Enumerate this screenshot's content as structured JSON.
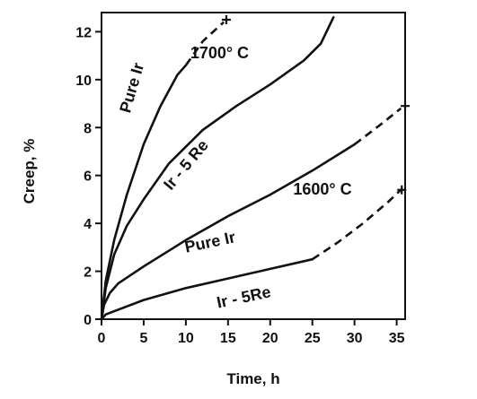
{
  "chart_data": {
    "type": "line",
    "xlabel": "Time, h",
    "ylabel": "Creep, %",
    "xlim": [
      0,
      36
    ],
    "ylim": [
      0,
      12.8
    ],
    "xticks": [
      0,
      5,
      10,
      15,
      20,
      25,
      30,
      35
    ],
    "yticks": [
      0,
      2,
      4,
      6,
      8,
      10,
      12
    ],
    "grid": false,
    "legend": "none",
    "series": [
      {
        "name": "Pure Ir",
        "group": "1700° C",
        "solid": [
          [
            0,
            0
          ],
          [
            0.5,
            1.6
          ],
          [
            1.5,
            3.3
          ],
          [
            3,
            5.2
          ],
          [
            5,
            7.3
          ],
          [
            7,
            8.9
          ],
          [
            9,
            10.2
          ],
          [
            10,
            10.6
          ]
        ],
        "dashed": [
          [
            10,
            10.6
          ],
          [
            12,
            11.6
          ],
          [
            14.5,
            12.4
          ]
        ],
        "rupture": [
          14.8,
          12.5
        ]
      },
      {
        "name": "Ir - 5 Re",
        "group": "1700° C",
        "solid": [
          [
            0,
            0
          ],
          [
            0.5,
            1.3
          ],
          [
            1.5,
            2.7
          ],
          [
            3,
            3.9
          ],
          [
            5,
            5.0
          ],
          [
            8,
            6.5
          ],
          [
            12,
            7.9
          ],
          [
            16,
            8.9
          ],
          [
            20,
            9.8
          ],
          [
            24,
            10.8
          ],
          [
            26,
            11.5
          ],
          [
            27.5,
            12.6
          ]
        ],
        "dashed": [],
        "rupture": null
      },
      {
        "name": "Pure Ir",
        "group": "1600° C",
        "solid": [
          [
            0,
            0
          ],
          [
            0.3,
            0.6
          ],
          [
            1,
            1.1
          ],
          [
            2,
            1.5
          ],
          [
            5,
            2.2
          ],
          [
            10,
            3.3
          ],
          [
            15,
            4.3
          ],
          [
            20,
            5.2
          ],
          [
            25,
            6.2
          ],
          [
            30,
            7.3
          ]
        ],
        "dashed": [
          [
            30,
            7.3
          ],
          [
            33,
            8.1
          ],
          [
            35.5,
            8.8
          ]
        ],
        "rupture": [
          36,
          8.9
        ]
      },
      {
        "name": "Ir - 5Re",
        "group": "1600° C",
        "solid": [
          [
            0,
            0
          ],
          [
            0.5,
            0.2
          ],
          [
            2,
            0.4
          ],
          [
            5,
            0.8
          ],
          [
            10,
            1.3
          ],
          [
            15,
            1.7
          ],
          [
            20,
            2.1
          ],
          [
            25,
            2.5
          ]
        ],
        "dashed": [
          [
            25,
            2.5
          ],
          [
            28,
            3.2
          ],
          [
            31,
            4.0
          ],
          [
            34,
            4.9
          ],
          [
            35.5,
            5.4
          ]
        ],
        "rupture": [
          35.6,
          5.4
        ]
      }
    ],
    "annotations": [
      {
        "text": "1700° C",
        "x": 14,
        "y": 10.9
      },
      {
        "text": "Pure Ir",
        "x": 4.2,
        "y": 9.6,
        "angle": -74
      },
      {
        "text": "Ir - 5 Re",
        "x": 10.5,
        "y": 6.3,
        "angle": -50
      },
      {
        "text": "1600° C",
        "x": 26.2,
        "y": 5.2
      },
      {
        "text": "Pure Ir",
        "x": 13,
        "y": 3.0,
        "angle": -12
      },
      {
        "text": "Ir  - 5Re",
        "x": 17,
        "y": 0.7,
        "angle": -12
      }
    ]
  }
}
